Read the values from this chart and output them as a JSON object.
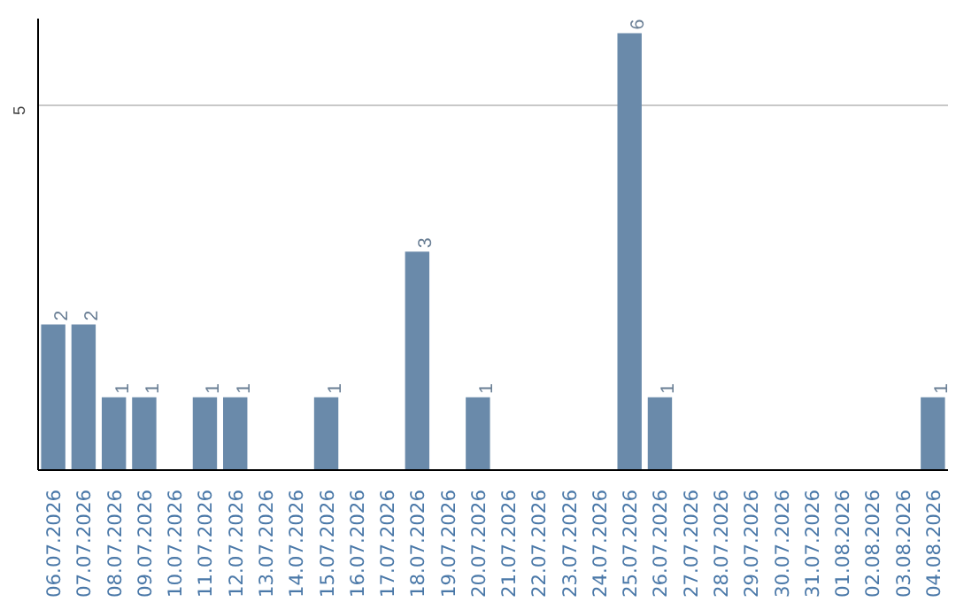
{
  "chart_data": {
    "type": "bar",
    "categories": [
      "06.07.2026",
      "07.07.2026",
      "08.07.2026",
      "09.07.2026",
      "10.07.2026",
      "11.07.2026",
      "12.07.2026",
      "13.07.2026",
      "14.07.2026",
      "15.07.2026",
      "16.07.2026",
      "17.07.2026",
      "18.07.2026",
      "19.07.2026",
      "20.07.2026",
      "21.07.2026",
      "22.07.2026",
      "23.07.2026",
      "24.07.2026",
      "25.07.2026",
      "26.07.2026",
      "27.07.2026",
      "28.07.2026",
      "29.07.2026",
      "30.07.2026",
      "31.07.2026",
      "01.08.2026",
      "02.08.2026",
      "03.08.2026",
      "04.08.2026"
    ],
    "values": [
      2,
      2,
      1,
      1,
      0,
      1,
      1,
      0,
      0,
      1,
      0,
      0,
      3,
      0,
      1,
      0,
      0,
      0,
      0,
      6,
      1,
      0,
      0,
      0,
      0,
      0,
      0,
      0,
      0,
      1
    ],
    "value_labels": [
      "2",
      "2",
      "1",
      "1",
      null,
      "1",
      "1",
      null,
      null,
      "1",
      null,
      null,
      "3",
      null,
      "1",
      null,
      null,
      null,
      null,
      "6",
      "1",
      null,
      null,
      null,
      null,
      null,
      null,
      null,
      null,
      "1"
    ],
    "color": "#6a8aaa",
    "ylim": [
      0,
      6.2
    ],
    "yticks": [
      5
    ],
    "grid": "y"
  }
}
